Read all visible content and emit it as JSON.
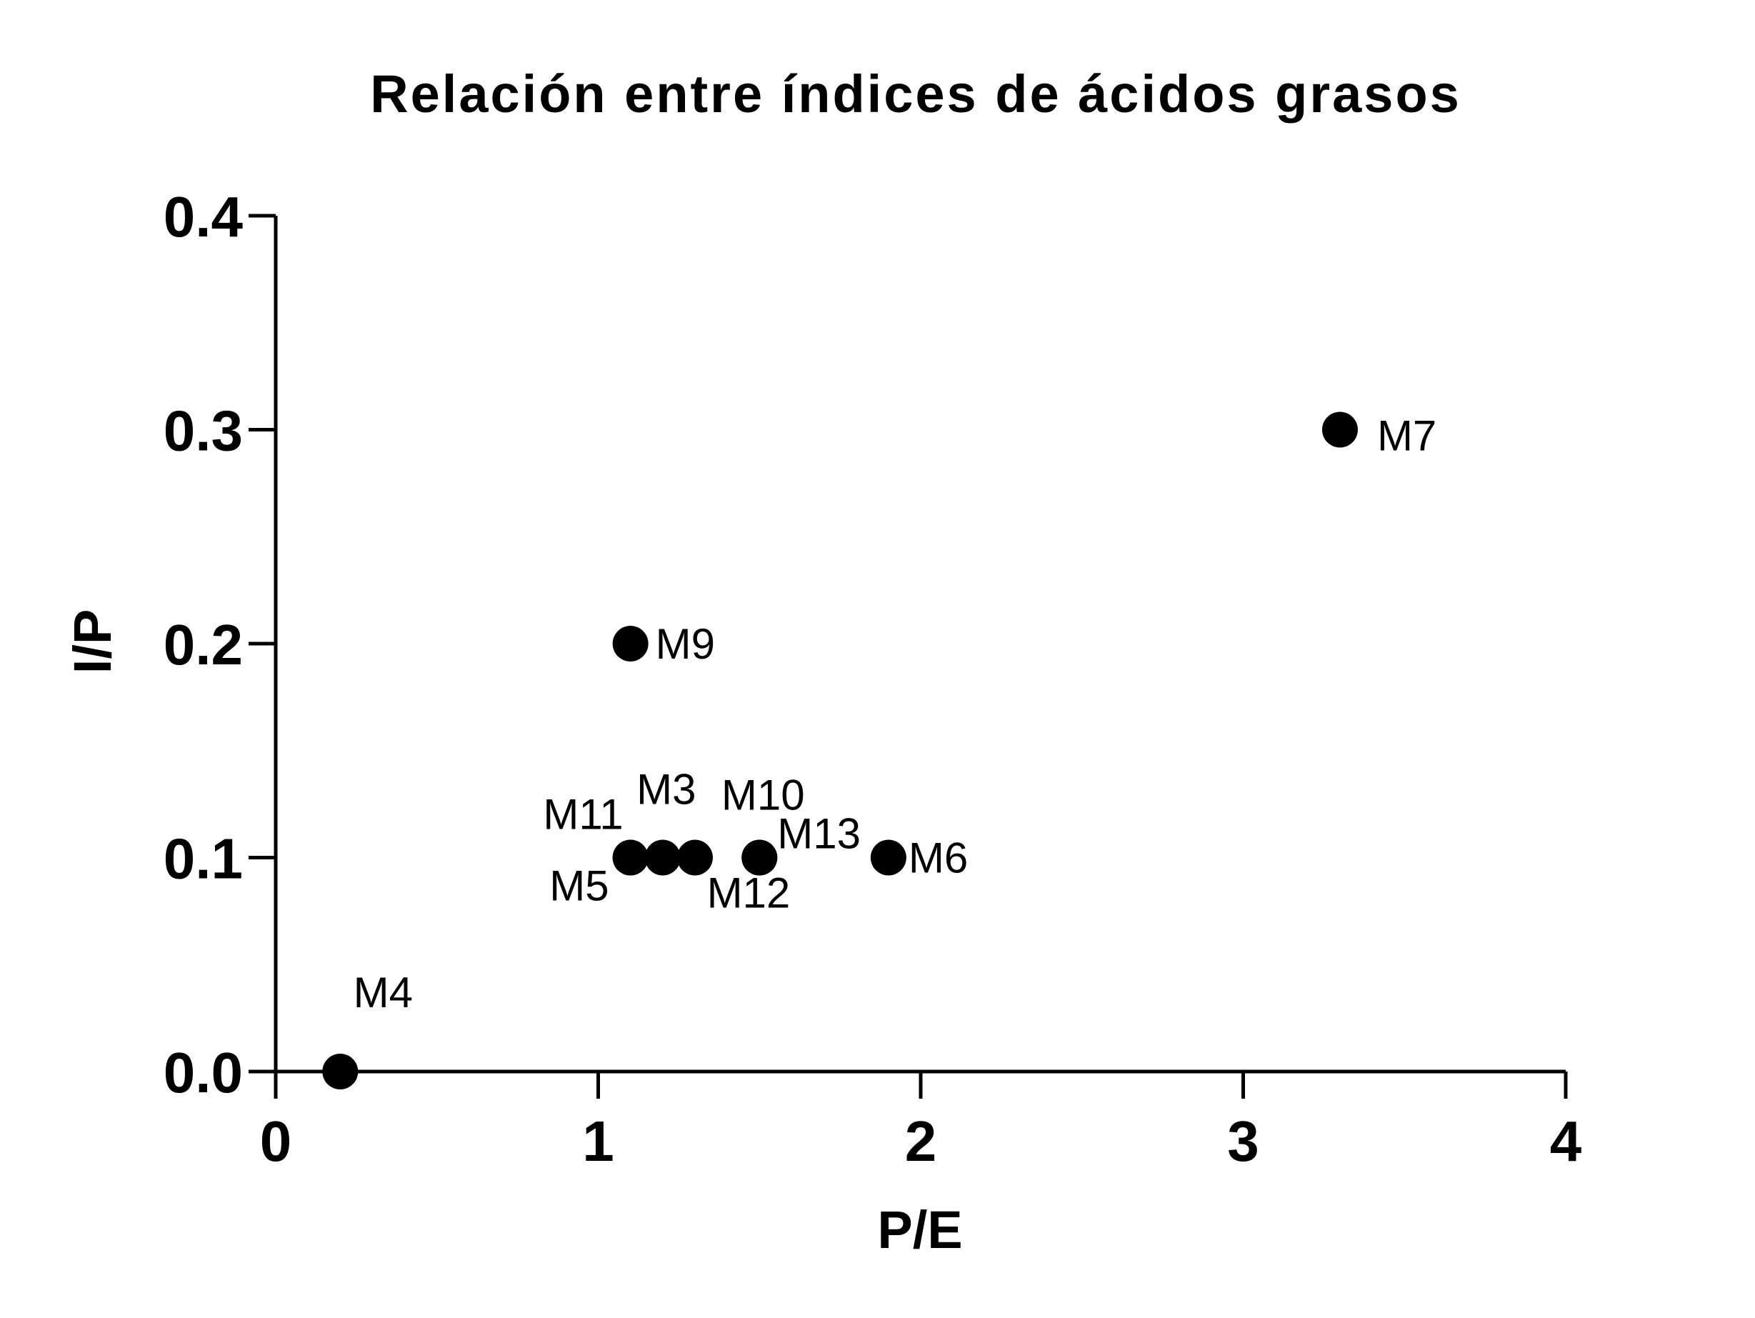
{
  "chart_data": {
    "type": "scatter",
    "title": "Relación entre índices de ácidos grasos",
    "xlabel": "P/E",
    "ylabel": "I/P",
    "xlim": [
      0,
      4
    ],
    "ylim": [
      0,
      0.4
    ],
    "x_ticks": [
      "0",
      "1",
      "2",
      "3",
      "4"
    ],
    "y_ticks": [
      "0.0",
      "0.1",
      "0.2",
      "0.3",
      "0.4"
    ],
    "grid": false,
    "marker_color": "#000000",
    "points": [
      {
        "label": "M4",
        "x": 0.2,
        "y": 0.0
      },
      {
        "label": "M5",
        "x": 1.1,
        "y": 0.1
      },
      {
        "label": "M11",
        "x": 1.1,
        "y": 0.1
      },
      {
        "label": "M3",
        "x": 1.2,
        "y": 0.1
      },
      {
        "label": "M12",
        "x": 1.3,
        "y": 0.1
      },
      {
        "label": "M10",
        "x": 1.5,
        "y": 0.1
      },
      {
        "label": "M13",
        "x": 1.5,
        "y": 0.1
      },
      {
        "label": "M6",
        "x": 1.9,
        "y": 0.1
      },
      {
        "label": "M9",
        "x": 1.1,
        "y": 0.2
      },
      {
        "label": "M7",
        "x": 3.3,
        "y": 0.3
      }
    ]
  }
}
